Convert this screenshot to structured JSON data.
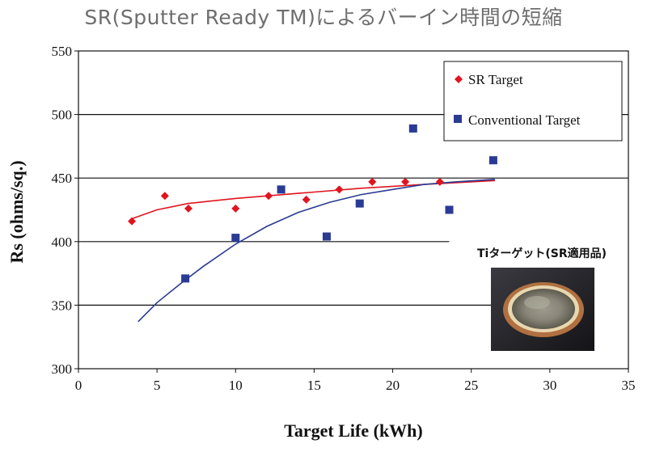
{
  "chart_data": {
    "type": "scatter",
    "title": "SR(Sputter Ready TM)によるバーイン時間の短縮",
    "xlabel": "Target Life (kWh)",
    "ylabel": "Rs (ohms/sq.)",
    "xlim": [
      0,
      35
    ],
    "ylim": [
      300,
      550
    ],
    "xticks": [
      "0",
      "5",
      "10",
      "15",
      "20",
      "25",
      "30",
      "35"
    ],
    "yticks": [
      "300",
      "350",
      "400",
      "450",
      "500",
      "550"
    ],
    "grid": "horizontal",
    "legend_position": "top-right",
    "series": [
      {
        "name": "SR Target",
        "marker": "diamond",
        "color": "#e0141e",
        "points": [
          [
            3.4,
            416
          ],
          [
            5.5,
            436
          ],
          [
            7.0,
            426
          ],
          [
            10.0,
            426
          ],
          [
            12.1,
            436
          ],
          [
            14.5,
            433
          ],
          [
            16.6,
            441
          ],
          [
            18.7,
            447
          ],
          [
            20.8,
            447
          ],
          [
            23.0,
            447
          ]
        ],
        "trend": [
          [
            3.4,
            418
          ],
          [
            5,
            425
          ],
          [
            7,
            430
          ],
          [
            10,
            434
          ],
          [
            14,
            438
          ],
          [
            18,
            442
          ],
          [
            22,
            445
          ],
          [
            26.5,
            448
          ]
        ]
      },
      {
        "name": "Conventional Target",
        "marker": "square",
        "color": "#2a3b93",
        "points": [
          [
            6.8,
            371
          ],
          [
            10.0,
            403
          ],
          [
            12.9,
            441
          ],
          [
            15.8,
            404
          ],
          [
            17.9,
            430
          ],
          [
            21.3,
            489
          ],
          [
            23.6,
            425
          ],
          [
            26.4,
            464
          ]
        ],
        "trend": [
          [
            3.8,
            337
          ],
          [
            5,
            352
          ],
          [
            6.5,
            367
          ],
          [
            8,
            381
          ],
          [
            10,
            398
          ],
          [
            12,
            412
          ],
          [
            14,
            423
          ],
          [
            16,
            431
          ],
          [
            18,
            437
          ],
          [
            20,
            441
          ],
          [
            22,
            445
          ],
          [
            24,
            447
          ],
          [
            26.5,
            449
          ]
        ]
      }
    ],
    "inset": {
      "caption": "Tiターゲット(SR適用品)"
    }
  }
}
